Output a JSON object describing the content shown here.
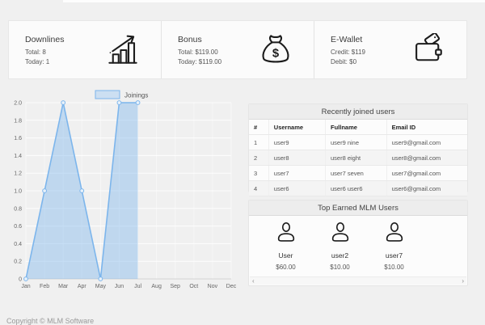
{
  "page": {
    "footer_text": "Copyright © MLM Software"
  },
  "stats_cards": [
    {
      "title": "Downlines",
      "line1": "Total: 8",
      "line2": "Today: 1",
      "icon": "growth-chart-icon"
    },
    {
      "title": "Bonus",
      "line1": "Total: $119.00",
      "line2": "Today: $119.00",
      "icon": "money-bag-icon"
    },
    {
      "title": "E-Wallet",
      "line1": "Credit: $119",
      "line2": "Debit: $0",
      "icon": "wallet-icon"
    }
  ],
  "chart_data": {
    "type": "area",
    "title": "",
    "categories": [
      "Jan",
      "Feb",
      "Mar",
      "Apr",
      "May",
      "Jun",
      "Jul",
      "Aug",
      "Sep",
      "Oct",
      "Nov",
      "Dec"
    ],
    "series": [
      {
        "name": "Joinings",
        "values": [
          0,
          1,
          2,
          1,
          0,
          2,
          2
        ],
        "color": "#7cb5ec"
      }
    ],
    "ylim": [
      0,
      2
    ],
    "ytick_step": 0.2,
    "grid": true,
    "legend_position": "top"
  },
  "recent_users": {
    "title": "Recently joined users",
    "columns": [
      "#",
      "Username",
      "Fullname",
      "Email ID"
    ],
    "rows": [
      [
        "1",
        "user9",
        "user9 nine",
        "user9@gmail.com"
      ],
      [
        "2",
        "user8",
        "user8 eight",
        "user8@gmail.com"
      ],
      [
        "3",
        "user7",
        "user7 seven",
        "user7@gmail.com"
      ],
      [
        "4",
        "user6",
        "user6 user6",
        "user6@gmail.com"
      ]
    ]
  },
  "top_earned": {
    "title": "Top Earned MLM Users",
    "users": [
      {
        "name": "User",
        "amount": "$60.00"
      },
      {
        "name": "user2",
        "amount": "$10.00"
      },
      {
        "name": "user7",
        "amount": "$10.00"
      }
    ],
    "scroll_left": "‹",
    "scroll_right": "›"
  },
  "colors": {
    "accent": "#7cb5ec",
    "area_fill": "rgba(124,181,236,0.42)",
    "legend_fill": "#ccdff2",
    "page_bg": "#f0f0f0",
    "panel_bg": "#fbfbfb"
  }
}
